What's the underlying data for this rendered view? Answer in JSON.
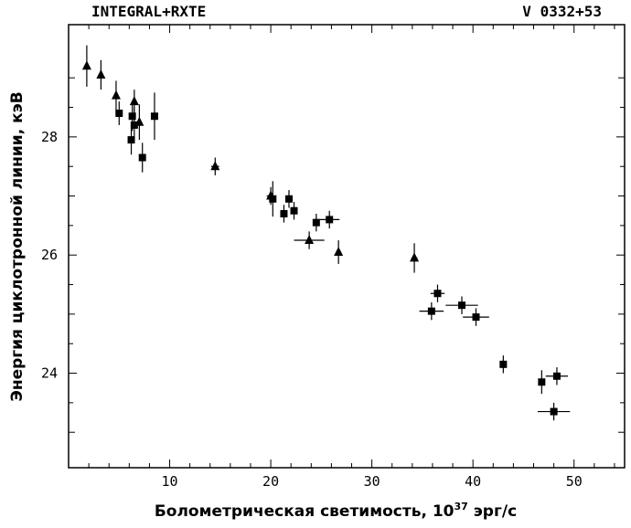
{
  "chart_data": {
    "type": "scatter",
    "title_left": "INTEGRAL+RXTE",
    "title_right": "V 0332+53",
    "xlabel_main": "Болометрическая светимость, 10",
    "xlabel_sup": "37",
    "xlabel_unit": " эрг/с",
    "ylabel": "Энергия циклотронной линии, кэВ",
    "xlim": [
      0,
      55
    ],
    "ylim": [
      22.4,
      29.9
    ],
    "x_ticks": [
      10,
      20,
      30,
      40,
      50
    ],
    "y_ticks": [
      24,
      26,
      28
    ],
    "grid": false,
    "series": [
      {
        "marker": "triangle",
        "points": [
          {
            "x": 1.8,
            "y": 29.2,
            "yerr": 0.35,
            "xerr": 0
          },
          {
            "x": 3.2,
            "y": 29.05,
            "yerr": 0.25,
            "xerr": 0
          },
          {
            "x": 4.7,
            "y": 28.7,
            "yerr": 0.25,
            "xerr": 0
          },
          {
            "x": 6.5,
            "y": 28.6,
            "yerr": 0.2,
            "xerr": 0
          },
          {
            "x": 7.0,
            "y": 28.25,
            "yerr": 0.3,
            "xerr": 0
          },
          {
            "x": 14.5,
            "y": 27.5,
            "yerr": 0.15,
            "xerr": 0.4
          },
          {
            "x": 20.0,
            "y": 27.0,
            "yerr": 0.15,
            "xerr": 0.4
          },
          {
            "x": 23.8,
            "y": 26.25,
            "yerr": 0.15,
            "xerr": 1.5
          },
          {
            "x": 26.7,
            "y": 26.05,
            "yerr": 0.2,
            "xerr": 0
          },
          {
            "x": 34.2,
            "y": 25.95,
            "yerr": 0.25,
            "xerr": 0.3
          }
        ]
      },
      {
        "marker": "square",
        "points": [
          {
            "x": 5.0,
            "y": 28.4,
            "yerr": 0.2,
            "xerr": 0
          },
          {
            "x": 6.3,
            "y": 28.35,
            "yerr": 0.25,
            "xerr": 0
          },
          {
            "x": 6.5,
            "y": 28.2,
            "yerr": 0.3,
            "xerr": 0
          },
          {
            "x": 6.2,
            "y": 27.95,
            "yerr": 0.25,
            "xerr": 0
          },
          {
            "x": 7.3,
            "y": 27.65,
            "yerr": 0.25,
            "xerr": 0
          },
          {
            "x": 8.5,
            "y": 28.35,
            "yerr": 0.4,
            "xerr": 0
          },
          {
            "x": 20.2,
            "y": 26.95,
            "yerr": 0.3,
            "xerr": 0.3
          },
          {
            "x": 21.3,
            "y": 26.7,
            "yerr": 0.15,
            "xerr": 0
          },
          {
            "x": 21.8,
            "y": 26.95,
            "yerr": 0.15,
            "xerr": 0
          },
          {
            "x": 22.3,
            "y": 26.75,
            "yerr": 0.15,
            "xerr": 0
          },
          {
            "x": 24.5,
            "y": 26.55,
            "yerr": 0.15,
            "xerr": 0
          },
          {
            "x": 25.8,
            "y": 26.6,
            "yerr": 0.15,
            "xerr": 1.0
          },
          {
            "x": 35.9,
            "y": 25.05,
            "yerr": 0.15,
            "xerr": 1.2
          },
          {
            "x": 36.5,
            "y": 25.35,
            "yerr": 0.15,
            "xerr": 0.7
          },
          {
            "x": 38.9,
            "y": 25.15,
            "yerr": 0.15,
            "xerr": 1.6
          },
          {
            "x": 40.3,
            "y": 24.95,
            "yerr": 0.15,
            "xerr": 1.3
          },
          {
            "x": 43.0,
            "y": 24.15,
            "yerr": 0.15,
            "xerr": 0
          },
          {
            "x": 46.8,
            "y": 23.85,
            "yerr": 0.2,
            "xerr": 0
          },
          {
            "x": 48.3,
            "y": 23.95,
            "yerr": 0.15,
            "xerr": 1.1
          },
          {
            "x": 48.0,
            "y": 23.35,
            "yerr": 0.15,
            "xerr": 1.6
          }
        ]
      }
    ]
  }
}
